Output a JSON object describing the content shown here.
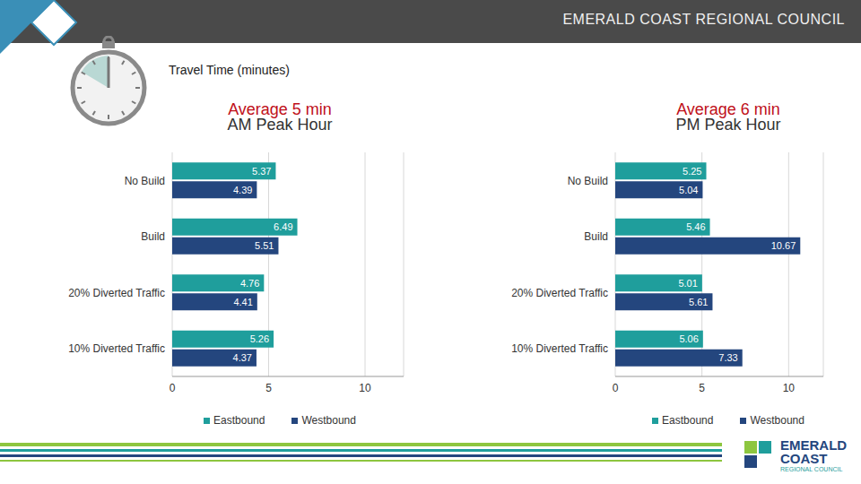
{
  "header": "EMERALD COAST REGIONAL COUNCIL",
  "title": "Travel Time (minutes)",
  "footer_logo": [
    "EMERALD",
    "COAST",
    "REGIONAL COUNCIL"
  ],
  "chart_data": [
    {
      "type": "bar",
      "orientation": "horizontal",
      "title": "AM Peak Hour",
      "subtitle": "Average 5 min",
      "categories": [
        "No Build",
        "Build",
        "20% Diverted Traffic",
        "10% Diverted Traffic"
      ],
      "series": [
        {
          "name": "Eastbound",
          "color": "#1f9e9c",
          "values": [
            5.37,
            6.49,
            4.76,
            5.26
          ]
        },
        {
          "name": "Westbound",
          "color": "#24467e",
          "values": [
            4.39,
            5.51,
            4.41,
            4.37
          ]
        }
      ],
      "xlim": [
        0,
        12
      ],
      "xticks": [
        0,
        5,
        10
      ],
      "grid": true,
      "data_labels": true
    },
    {
      "type": "bar",
      "orientation": "horizontal",
      "title": "PM Peak Hour",
      "subtitle": "Average 6 min",
      "categories": [
        "No Build",
        "Build",
        "20% Diverted Traffic",
        "10% Diverted Traffic"
      ],
      "series": [
        {
          "name": "Eastbound",
          "color": "#1f9e9c",
          "values": [
            5.25,
            5.46,
            5.01,
            5.06
          ]
        },
        {
          "name": "Westbound",
          "color": "#24467e",
          "values": [
            5.04,
            10.67,
            5.61,
            7.33
          ]
        }
      ],
      "xlim": [
        0,
        12
      ],
      "xticks": [
        0,
        5,
        10
      ],
      "grid": true,
      "data_labels": true
    }
  ]
}
